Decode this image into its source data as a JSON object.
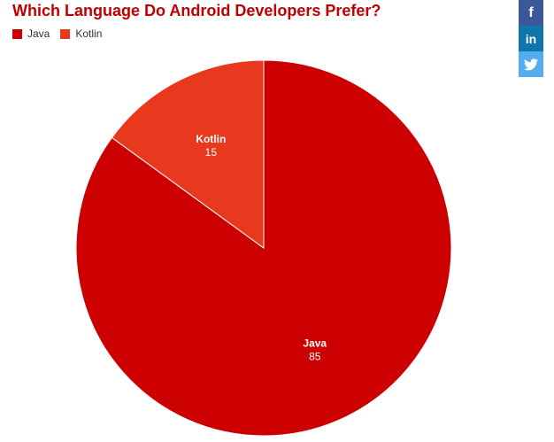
{
  "share": {
    "facebook_label": "f",
    "linkedin_label": "in"
  },
  "colors": {
    "java": "#cc0000",
    "kotlin": "#e8381d",
    "slice_border": "#ffffff",
    "data_label": "#ffffff"
  },
  "chart_data": {
    "type": "pie",
    "title": "Which Language Do Android Developers Prefer?",
    "legend_position": "top-left",
    "start_angle_deg": 0,
    "direction": "clockwise",
    "slices": [
      {
        "label": "Java",
        "value": 85
      },
      {
        "label": "Kotlin",
        "value": 15
      }
    ]
  }
}
